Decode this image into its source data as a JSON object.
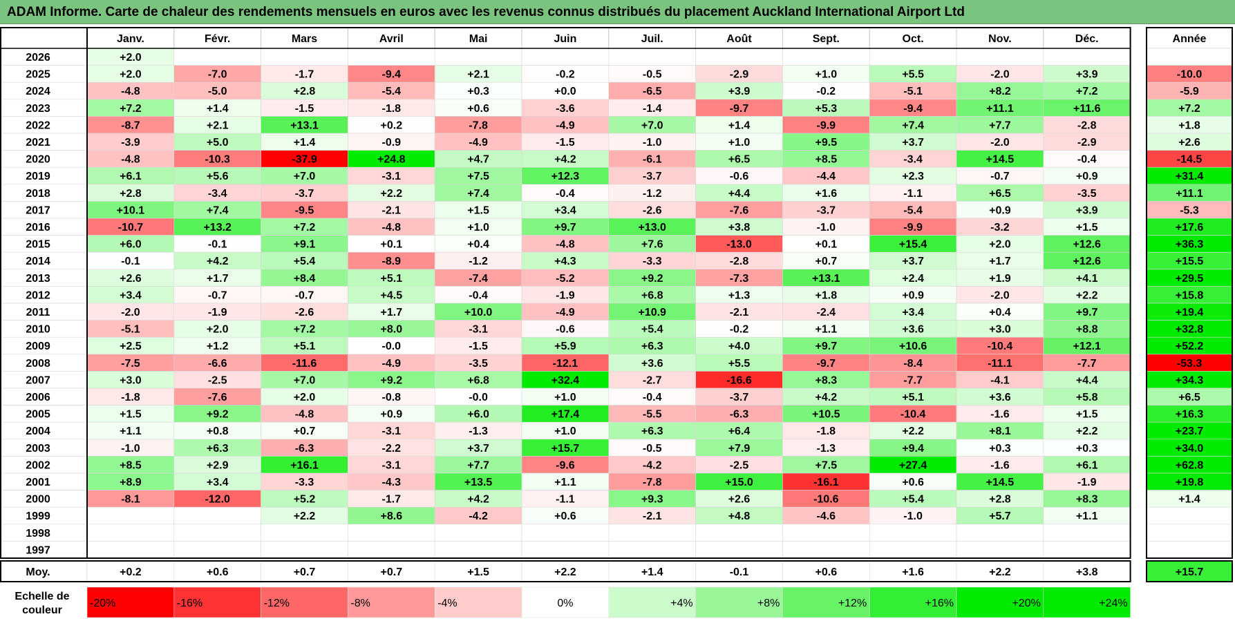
{
  "title": "ADAM Informe. Carte de chaleur des rendements mensuels en euros avec les revenus connus distribués du placement Auckland International Airport Ltd",
  "chart_data": {
    "type": "heatmap",
    "columns": [
      "Janv.",
      "Févr.",
      "Mars",
      "Avril",
      "Mai",
      "Juin",
      "Juil.",
      "Août",
      "Sept.",
      "Oct.",
      "Nov.",
      "Déc."
    ],
    "year_label": "Année",
    "rows": [
      {
        "year": "2026",
        "values": [
          2.0,
          null,
          null,
          null,
          null,
          null,
          null,
          null,
          null,
          null,
          null,
          null
        ],
        "annual": null
      },
      {
        "year": "2025",
        "values": [
          2.0,
          -7.0,
          -1.7,
          -9.4,
          2.1,
          -0.2,
          -0.5,
          -2.9,
          1.0,
          5.5,
          -2.0,
          3.9
        ],
        "annual": -10.0
      },
      {
        "year": "2024",
        "values": [
          -4.8,
          -5.0,
          2.8,
          -5.4,
          0.3,
          0.0,
          -6.5,
          3.9,
          -0.2,
          -5.1,
          8.2,
          7.2
        ],
        "annual": -5.9
      },
      {
        "year": "2023",
        "values": [
          7.2,
          1.4,
          -1.5,
          -1.8,
          0.6,
          -3.6,
          -1.4,
          -9.7,
          5.3,
          -9.4,
          11.1,
          11.6
        ],
        "annual": 7.2
      },
      {
        "year": "2022",
        "values": [
          -8.7,
          2.1,
          13.1,
          0.2,
          -7.8,
          -4.9,
          7.0,
          1.4,
          -9.9,
          7.4,
          7.7,
          -2.8
        ],
        "annual": 1.8
      },
      {
        "year": "2021",
        "values": [
          -3.9,
          5.0,
          1.4,
          -0.9,
          -4.9,
          -1.5,
          -1.0,
          1.0,
          9.5,
          3.7,
          -2.0,
          -2.9
        ],
        "annual": 2.6
      },
      {
        "year": "2020",
        "values": [
          -4.8,
          -10.3,
          -37.9,
          24.8,
          4.7,
          4.2,
          -6.1,
          6.5,
          8.5,
          -3.4,
          14.5,
          -0.4
        ],
        "annual": -14.5
      },
      {
        "year": "2019",
        "values": [
          6.1,
          5.6,
          7.0,
          -3.1,
          7.5,
          12.3,
          -3.7,
          -0.6,
          -4.4,
          2.3,
          -0.7,
          0.9
        ],
        "annual": 31.4
      },
      {
        "year": "2018",
        "values": [
          2.8,
          -3.4,
          -3.7,
          2.2,
          7.4,
          -0.4,
          -1.2,
          4.4,
          1.6,
          -1.1,
          6.5,
          -3.5
        ],
        "annual": 11.1
      },
      {
        "year": "2017",
        "values": [
          10.1,
          7.4,
          -9.5,
          -2.1,
          1.5,
          3.4,
          -2.6,
          -7.6,
          -3.7,
          -5.4,
          0.9,
          3.9
        ],
        "annual": -5.3
      },
      {
        "year": "2016",
        "values": [
          -10.7,
          13.2,
          7.2,
          -4.8,
          1.0,
          9.7,
          13.0,
          3.8,
          -1.0,
          -9.9,
          -3.2,
          1.5
        ],
        "annual": 17.6
      },
      {
        "year": "2015",
        "values": [
          6.0,
          -0.1,
          9.1,
          0.1,
          0.4,
          -4.8,
          7.6,
          -13.0,
          0.1,
          15.4,
          2.0,
          12.6
        ],
        "annual": 36.3
      },
      {
        "year": "2014",
        "values": [
          -0.1,
          4.2,
          5.4,
          -8.9,
          -1.2,
          4.3,
          -3.3,
          -2.8,
          0.7,
          3.7,
          1.7,
          12.6
        ],
        "annual": 15.5
      },
      {
        "year": "2013",
        "values": [
          2.6,
          1.7,
          8.4,
          5.1,
          -7.4,
          -5.2,
          9.2,
          -7.3,
          13.1,
          2.4,
          1.9,
          4.1
        ],
        "annual": 29.5
      },
      {
        "year": "2012",
        "values": [
          3.4,
          -0.7,
          -0.7,
          4.5,
          -0.4,
          -1.9,
          6.8,
          1.3,
          1.8,
          0.9,
          -2.0,
          2.2
        ],
        "annual": 15.8
      },
      {
        "year": "2011",
        "values": [
          -2.0,
          -1.9,
          -2.6,
          1.7,
          10.0,
          -4.9,
          10.9,
          -2.1,
          -2.4,
          3.4,
          0.4,
          9.7
        ],
        "annual": 19.4
      },
      {
        "year": "2010",
        "values": [
          -5.1,
          2.0,
          7.2,
          8.0,
          -3.1,
          -0.6,
          5.4,
          -0.2,
          1.1,
          3.6,
          3.0,
          8.8
        ],
        "annual": 32.8
      },
      {
        "year": "2009",
        "values": [
          2.5,
          1.2,
          5.1,
          "-0.0",
          -1.5,
          5.9,
          6.3,
          4.0,
          9.7,
          10.6,
          -10.4,
          12.1
        ],
        "annual": 52.2
      },
      {
        "year": "2008",
        "values": [
          -7.5,
          -6.6,
          -11.6,
          -4.9,
          -3.5,
          -12.1,
          3.6,
          5.5,
          -9.7,
          -8.4,
          -11.1,
          -7.7
        ],
        "annual": -53.3
      },
      {
        "year": "2007",
        "values": [
          3.0,
          -2.5,
          7.0,
          9.2,
          6.8,
          32.4,
          -2.7,
          -16.6,
          8.3,
          -7.7,
          -4.1,
          4.4
        ],
        "annual": 34.3
      },
      {
        "year": "2006",
        "values": [
          -1.8,
          -7.6,
          2.0,
          -0.8,
          "-0.0",
          1.0,
          -0.4,
          -3.7,
          4.2,
          5.1,
          3.6,
          5.8
        ],
        "annual": 6.5
      },
      {
        "year": "2005",
        "values": [
          1.5,
          9.2,
          -4.8,
          0.9,
          6.0,
          17.4,
          -5.5,
          -6.3,
          10.5,
          -10.4,
          -1.6,
          1.5
        ],
        "annual": 16.3
      },
      {
        "year": "2004",
        "values": [
          1.1,
          0.8,
          0.7,
          -3.1,
          -1.3,
          1.0,
          6.3,
          6.4,
          -1.8,
          2.2,
          8.1,
          2.2
        ],
        "annual": 23.7
      },
      {
        "year": "2003",
        "values": [
          -1.0,
          6.3,
          -6.3,
          -2.2,
          3.7,
          15.7,
          -0.5,
          7.9,
          -1.3,
          9.4,
          0.3,
          0.3
        ],
        "annual": 34.0
      },
      {
        "year": "2002",
        "values": [
          8.5,
          2.9,
          16.1,
          -3.1,
          7.7,
          -9.6,
          -4.2,
          -2.5,
          7.5,
          27.4,
          -1.6,
          6.1
        ],
        "annual": 62.8
      },
      {
        "year": "2001",
        "values": [
          8.9,
          3.4,
          -3.3,
          -4.3,
          13.5,
          1.1,
          -7.8,
          15.0,
          -16.1,
          0.6,
          14.5,
          -1.9
        ],
        "annual": 19.8
      },
      {
        "year": "2000",
        "values": [
          -8.1,
          -12.0,
          5.2,
          -1.7,
          4.2,
          -1.1,
          9.3,
          2.6,
          -10.6,
          5.4,
          2.8,
          8.3
        ],
        "annual": 1.4
      },
      {
        "year": "1999",
        "values": [
          null,
          null,
          2.2,
          8.6,
          -4.2,
          0.6,
          -2.1,
          4.8,
          -4.6,
          -1.0,
          5.7,
          1.1
        ],
        "annual": null
      },
      {
        "year": "1998",
        "values": [
          null,
          null,
          null,
          null,
          null,
          null,
          null,
          null,
          null,
          null,
          null,
          null
        ],
        "annual": null
      },
      {
        "year": "1997",
        "values": [
          null,
          null,
          null,
          null,
          null,
          null,
          null,
          null,
          null,
          null,
          null,
          null
        ],
        "annual": null
      }
    ],
    "average": {
      "label": "Moy.",
      "values": [
        0.2,
        0.6,
        0.7,
        0.7,
        1.5,
        2.2,
        1.4,
        -0.1,
        0.6,
        1.6,
        2.2,
        3.8
      ],
      "annual": 15.7
    },
    "legend": {
      "label_line1": "Echelle de",
      "label_line2": "couleur",
      "stops": [
        -20,
        -16,
        -12,
        -8,
        -4,
        0,
        4,
        8,
        12,
        16,
        20,
        24
      ],
      "texts": [
        "-20%",
        "-16%",
        "-12%",
        "-8%",
        "-4%",
        "0%",
        "+4%",
        "+8%",
        "+12%",
        "+16%",
        "+20%",
        "+24%"
      ]
    }
  }
}
